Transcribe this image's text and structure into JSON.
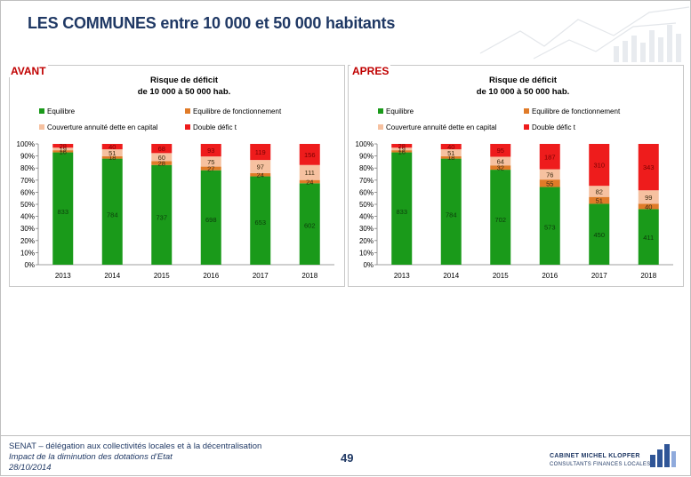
{
  "slide": {
    "title": "LES COMMUNES entre 10 000 et 50 000 habitants",
    "page_number": "49",
    "footer": {
      "line1": "SENAT – délégation aux collectivités locales et à la décentralisation",
      "line2": "Impact de la diminution des dotations d’Etat",
      "line3": "28/10/2014"
    },
    "logo": {
      "name": "CABINET MICHEL KLOPFER",
      "tagline": "CONSULTANTS FINANCES LOCALES"
    }
  },
  "colors": {
    "equilibre": "#1a9a1a",
    "equilibre_fonctionnement": "#e07b28",
    "couverture": "#f6c1a0",
    "double_deficit": "#ee1c1c",
    "title": "#1f3864",
    "tag": "#c00000"
  },
  "chart_data": [
    {
      "type": "bar",
      "stacked": true,
      "normalized": true,
      "tag": "AVANT",
      "title": "Risque de déficit\nde 10 000 à 50 000 hab.",
      "categories": [
        "2013",
        "2014",
        "2015",
        "2016",
        "2017",
        "2018"
      ],
      "y_ticks": [
        "0%",
        "10%",
        "20%",
        "30%",
        "40%",
        "50%",
        "60%",
        "70%",
        "80%",
        "90%",
        "100%"
      ],
      "ylim": [
        0,
        100
      ],
      "legend_position": "top",
      "series": [
        {
          "name": "Equilibre",
          "color": "#1a9a1a",
          "values": [
            833,
            784,
            737,
            698,
            653,
            602
          ]
        },
        {
          "name": "Equilibre de fonctionnement",
          "color": "#e07b28",
          "values": [
            16,
            18,
            28,
            27,
            24,
            24
          ]
        },
        {
          "name": "Couverture annuité dette en capital",
          "color": "#f6c1a0",
          "values": [
            19,
            51,
            60,
            75,
            97,
            111
          ]
        },
        {
          "name": "Double défic t",
          "color": "#ee1c1c",
          "values": [
            28,
            40,
            68,
            93,
            119,
            156
          ]
        }
      ]
    },
    {
      "type": "bar",
      "stacked": true,
      "normalized": true,
      "tag": "APRES",
      "title": "Risque de déficit\nde 10 000 à 50 000 hab.",
      "categories": [
        "2013",
        "2014",
        "2015",
        "2016",
        "2017",
        "2018"
      ],
      "y_ticks": [
        "0%",
        "10%",
        "20%",
        "30%",
        "40%",
        "50%",
        "60%",
        "70%",
        "80%",
        "90%",
        "100%"
      ],
      "ylim": [
        0,
        100
      ],
      "legend_position": "top",
      "series": [
        {
          "name": "Equilibre",
          "color": "#1a9a1a",
          "values": [
            833,
            784,
            702,
            573,
            450,
            411
          ]
        },
        {
          "name": "Equilibre de fonctionnement",
          "color": "#e07b28",
          "values": [
            16,
            18,
            32,
            55,
            51,
            40
          ]
        },
        {
          "name": "Couverture annuité dette en capital",
          "color": "#f6c1a0",
          "values": [
            19,
            51,
            64,
            76,
            82,
            99
          ]
        },
        {
          "name": "Double défic t",
          "color": "#ee1c1c",
          "values": [
            28,
            40,
            95,
            187,
            310,
            343
          ]
        }
      ]
    }
  ]
}
